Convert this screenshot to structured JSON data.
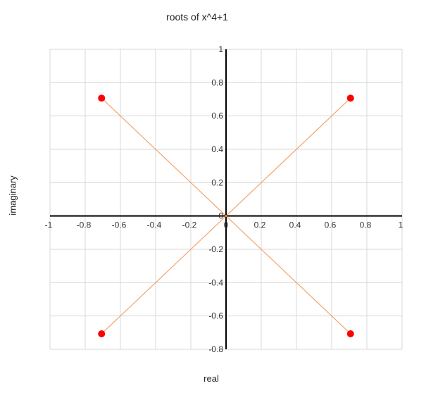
{
  "chart_data": {
    "type": "scatter",
    "title": "roots of x^4+1",
    "xlabel": "real",
    "ylabel": "imaginary",
    "xlim": [
      -1,
      1
    ],
    "ylim": [
      -0.8,
      1
    ],
    "x_ticks": [
      -1,
      -0.8,
      -0.6,
      -0.4,
      -0.2,
      0,
      0.2,
      0.4,
      0.6,
      0.8,
      1
    ],
    "y_ticks": [
      -0.8,
      -0.6,
      -0.4,
      -0.2,
      0,
      0.2,
      0.4,
      0.6,
      0.8,
      1
    ],
    "grid": true,
    "points": [
      {
        "x": 0.707,
        "y": 0.707
      },
      {
        "x": -0.707,
        "y": 0.707
      },
      {
        "x": -0.707,
        "y": -0.707
      },
      {
        "x": 0.707,
        "y": -0.707
      }
    ],
    "lines": [
      {
        "from": [
          -0.707,
          0.707
        ],
        "to": [
          0.707,
          -0.707
        ]
      },
      {
        "from": [
          -0.707,
          -0.707
        ],
        "to": [
          0.707,
          0.707
        ]
      }
    ],
    "colors": {
      "points": "#ff0000",
      "lines": "#f4a46a",
      "grid": "#d9d9d9",
      "axes": "#000000"
    }
  }
}
